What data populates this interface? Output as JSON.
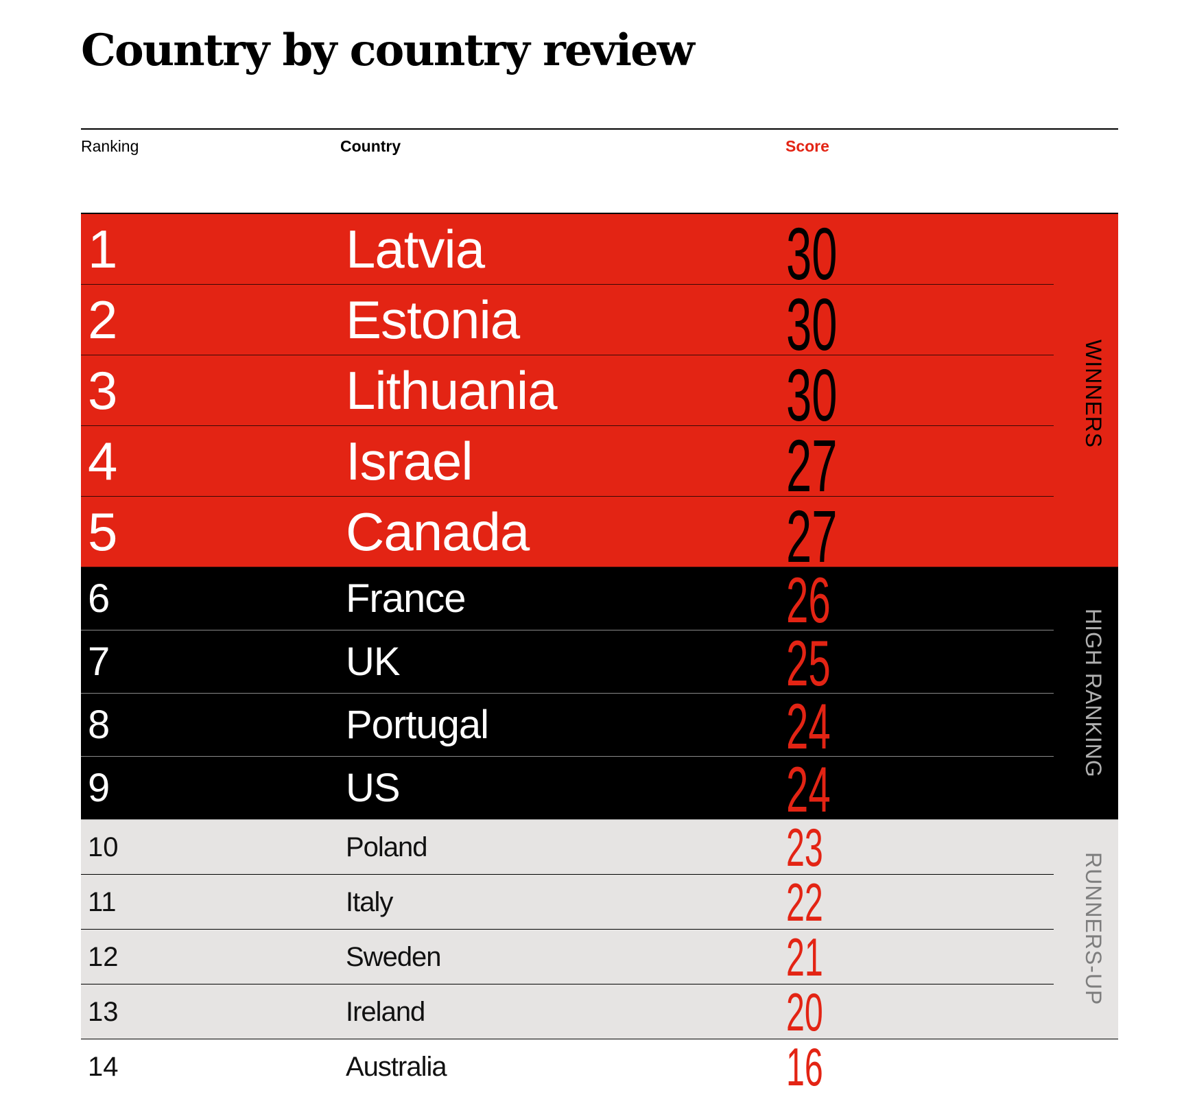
{
  "title": "Country by country review",
  "headers": {
    "ranking": "Ranking",
    "country": "Country",
    "score": "Score"
  },
  "colors": {
    "accent_red": "#e32414",
    "winners_bg": "#e32414",
    "high_ranking_bg": "#000000",
    "runners_up_bg": "#e6e4e3"
  },
  "chart_data": {
    "type": "table",
    "title": "Country by country review",
    "columns": [
      "Ranking",
      "Country",
      "Score"
    ],
    "groups": [
      {
        "label": "WINNERS",
        "rows": [
          {
            "rank": "1",
            "country": "Latvia",
            "score": 30
          },
          {
            "rank": "2",
            "country": "Estonia",
            "score": 30
          },
          {
            "rank": "3",
            "country": "Lithuania",
            "score": 30
          },
          {
            "rank": "4",
            "country": "Israel",
            "score": 27
          },
          {
            "rank": "5",
            "country": "Canada",
            "score": 27
          }
        ]
      },
      {
        "label": "HIGH RANKING",
        "rows": [
          {
            "rank": "6",
            "country": "France",
            "score": 26
          },
          {
            "rank": "7",
            "country": "UK",
            "score": 25
          },
          {
            "rank": "8",
            "country": "Portugal",
            "score": 24
          },
          {
            "rank": "9",
            "country": "US",
            "score": 24
          }
        ]
      },
      {
        "label": "RUNNERS-UP",
        "rows": [
          {
            "rank": "10",
            "country": "Poland",
            "score": 23
          },
          {
            "rank": "11",
            "country": "Italy",
            "score": 22
          },
          {
            "rank": "12",
            "country": "Sweden",
            "score": 21
          },
          {
            "rank": "13",
            "country": "Ireland",
            "score": 20
          }
        ]
      },
      {
        "label": "",
        "rows": [
          {
            "rank": "14",
            "country": "Australia",
            "score": 16
          }
        ]
      }
    ]
  }
}
